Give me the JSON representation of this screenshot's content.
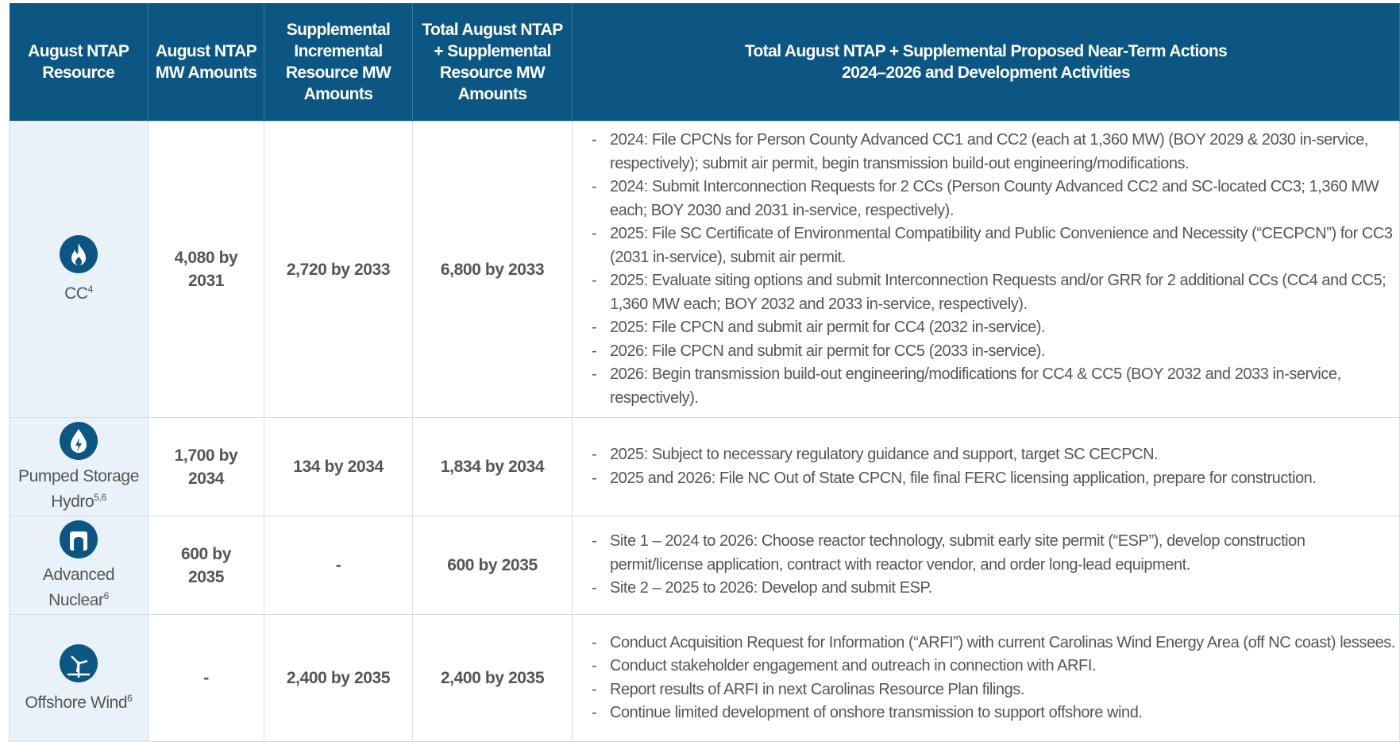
{
  "header": {
    "columns": [
      "August NTAP Resource",
      "August NTAP MW Amounts",
      "Supplemental Incremental Resource MW Amounts",
      "Total August NTAP + Supplemental Resource MW Amounts",
      [
        "Total August NTAP + Supplemental Proposed Near-Term Actions",
        "2024–2026 and Development Activities"
      ]
    ]
  },
  "table": {
    "rows": [
      {
        "resource": "CC",
        "note": "4",
        "icon": "flame",
        "august": "4,080 by 2031",
        "supplemental": "2,720 by 2033",
        "total": "6,800 by 2033",
        "actions": [
          "2024: File CPCNs for Person County Advanced CC1 and CC2 (each at 1,360 MW) (BOY 2029 & 2030 in-service, respectively); submit air permit, begin transmission build-out engineering/modifications.",
          "2024: Submit Interconnection Requests for 2 CCs (Person County Advanced CC2 and SC-located CC3; 1,360 MW each; BOY 2030 and 2031 in-service, respectively).",
          "2025: File SC Certificate of Environmental Compatibility and Public Convenience and Necessity (“CECPCN”) for CC3 (2031 in-service), submit air permit.",
          "2025: Evaluate siting options and submit Interconnection Requests and/or GRR for 2 additional CCs (CC4 and CC5; 1,360 MW each; BOY 2032 and 2033 in-service, respectively).",
          "2025: File CPCN and submit air permit for CC4 (2032 in-service).",
          "2026: File CPCN and submit air permit for CC5 (2033 in-service).",
          "2026: Begin transmission build-out engineering/modifications for CC4 & CC5 (BOY 2032 and 2033 in-service, respectively)."
        ]
      },
      {
        "resource": "Pumped Storage Hydro",
        "note": "5,6",
        "icon": "drop",
        "august": "1,700 by 2034",
        "supplemental": "134 by 2034",
        "total": "1,834 by 2034",
        "actions": [
          "2025: Subject to necessary regulatory guidance and support, target SC CECPCN.",
          "2025 and 2026: File NC Out of State CPCN, file final FERC licensing application, prepare for construction."
        ]
      },
      {
        "resource": "Advanced Nuclear",
        "note": "6",
        "icon": "nuclear",
        "august": "600 by 2035",
        "supplemental": "-",
        "total": "600 by 2035",
        "actions": [
          "Site 1 – 2024 to 2026: Choose reactor technology, submit early site permit (“ESP”), develop construction permit/license application, contract with reactor vendor, and order long-lead equipment.",
          "Site 2 – 2025 to 2026: Develop and submit ESP."
        ]
      },
      {
        "resource": "Offshore Wind",
        "note": "6",
        "icon": "wind",
        "august": "-",
        "supplemental": "2,400 by 2035",
        "total": "2,400 by 2035",
        "actions": [
          "Conduct Acquisition Request for Information (“ARFI”) with current Carolinas Wind Energy Area (off NC coast) lessees.",
          "Conduct stakeholder engagement and outreach in connection with ARFI.",
          "Report results of ARFI in next Carolinas Resource Plan filings.",
          "Continue limited development of onshore transmission to support offshore wind."
        ]
      }
    ]
  }
}
